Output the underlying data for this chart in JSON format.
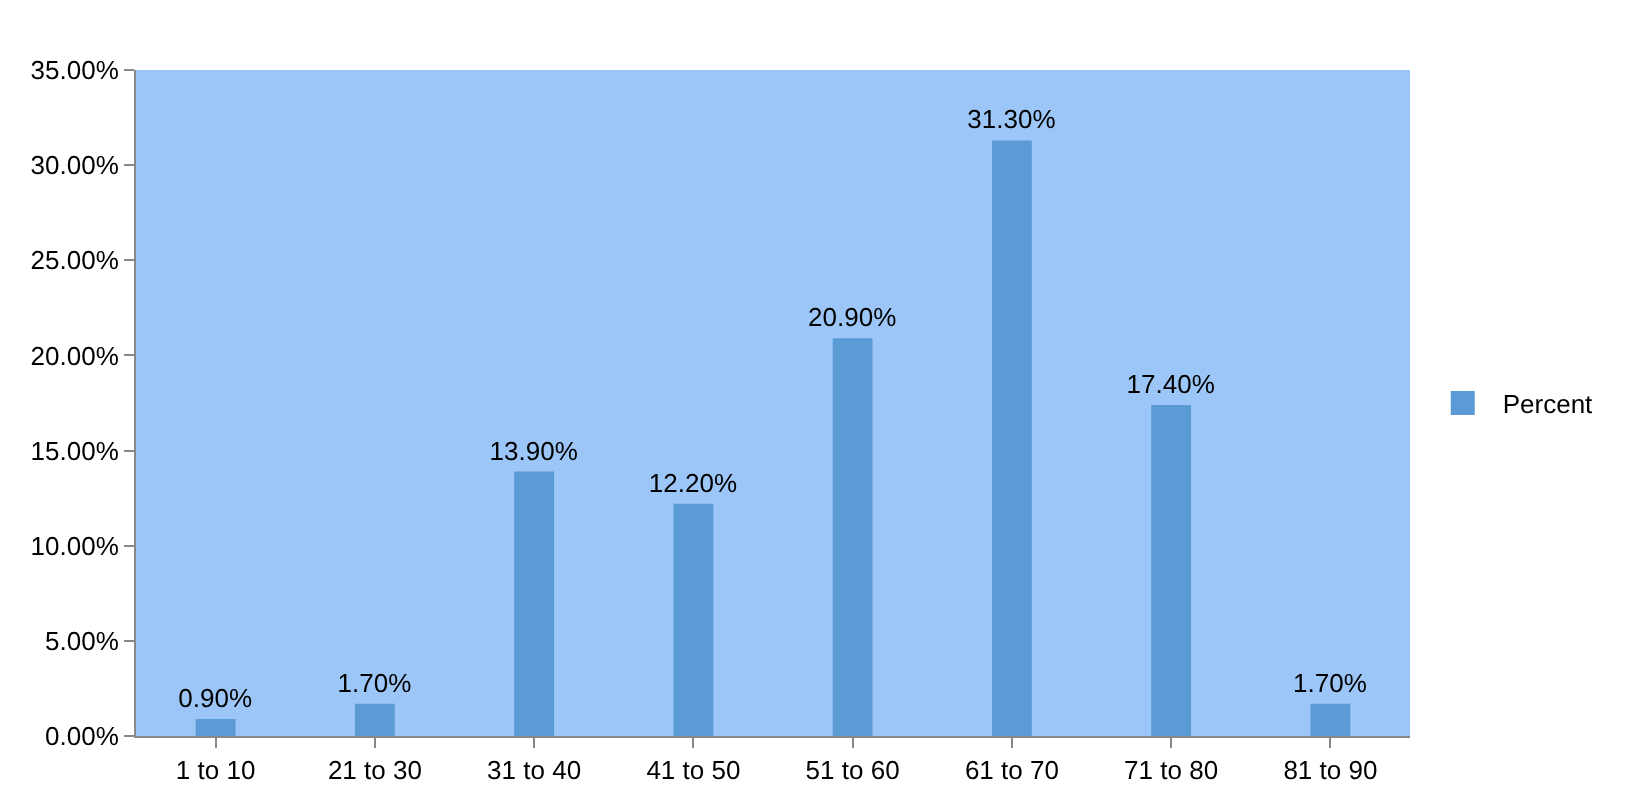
{
  "chart_data": {
    "type": "bar",
    "categories": [
      "1 to 10",
      "21 to 30",
      "31 to 40",
      "41 to 50",
      "51 to 60",
      "61 to 70",
      "71 to 80",
      "81 to 90"
    ],
    "series": [
      {
        "name": "Percent",
        "color": "#5b9bd5",
        "values": [
          0.9,
          1.7,
          13.9,
          12.2,
          20.9,
          31.3,
          17.4,
          1.7
        ],
        "value_labels": [
          "0.90%",
          "1.70%",
          "13.90%",
          "12.20%",
          "20.90%",
          "31.30%",
          "17.40%",
          "1.70%"
        ]
      }
    ],
    "ylim": [
      0,
      35
    ],
    "yticks": [
      {
        "value": 0,
        "label": "0.00%"
      },
      {
        "value": 5,
        "label": "5.00%"
      },
      {
        "value": 10,
        "label": "10.00%"
      },
      {
        "value": 15,
        "label": "15.00%"
      },
      {
        "value": 20,
        "label": "20.00%"
      },
      {
        "value": 25,
        "label": "25.00%"
      },
      {
        "value": 30,
        "label": "30.00%"
      },
      {
        "value": 35,
        "label": "35.00%"
      }
    ],
    "grid": false,
    "legend": "right"
  }
}
